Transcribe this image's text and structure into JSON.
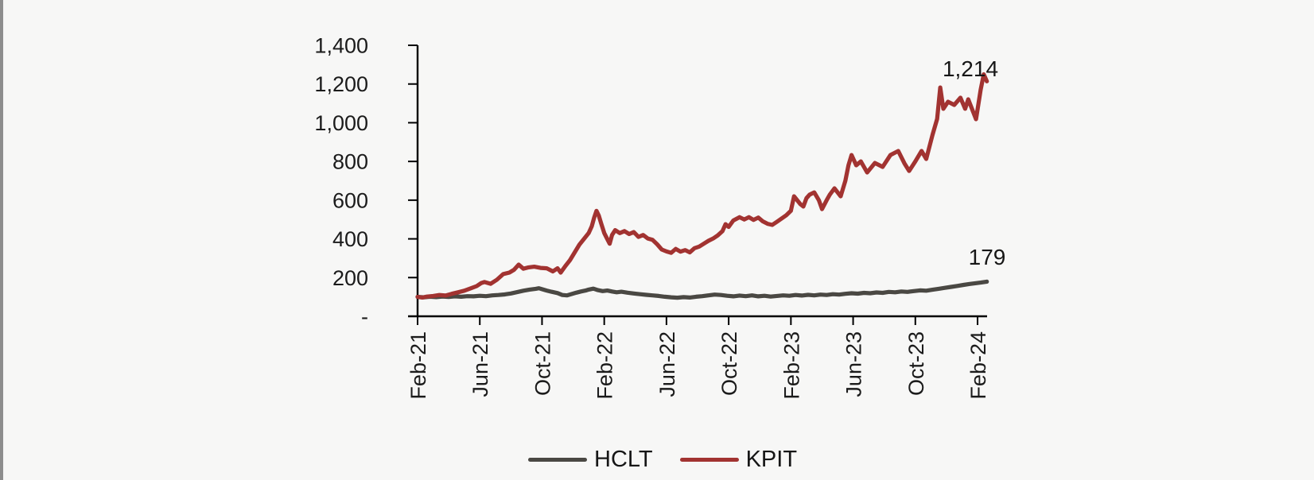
{
  "page": {
    "background": "#f7f7f6",
    "window_edge_color": "#8d8d8d"
  },
  "chart_data": {
    "type": "line",
    "title": "",
    "description": "Indexed share-price performance of HCLT vs KPIT from Feb-2021 to Feb-2024 (base 100)",
    "grid": false,
    "points_format": "[months_since_Feb-2021, indexed_value]",
    "x_axis": {
      "tick_labels": [
        "Feb-21",
        "Jun-21",
        "Oct-21",
        "Feb-22",
        "Jun-22",
        "Oct-22",
        "Feb-23",
        "Jun-23",
        "Oct-23",
        "Feb-24"
      ],
      "tick_interval_months": 4,
      "label_rotation_deg": -90
    },
    "y_axis": {
      "min": 0,
      "max": 1400,
      "tick_step": 200,
      "tick_values": [
        1400,
        1200,
        1000,
        800,
        600,
        400,
        200,
        0
      ],
      "tick_labels": [
        "1,400",
        "1,200",
        "1,000",
        "800",
        "600",
        "400",
        "200",
        "-"
      ]
    },
    "legend": {
      "position": "bottom-center",
      "items": [
        "HCLT",
        "KPIT"
      ]
    },
    "axis_color": "#000000",
    "text_color": "#1b1b1b",
    "series": [
      {
        "name": "HCLT",
        "color": "#4a4843",
        "end_label": "179",
        "end_value": 179,
        "points": [
          [
            0,
            100
          ],
          [
            0.4,
            98
          ],
          [
            0.8,
            101
          ],
          [
            1.2,
            99
          ],
          [
            1.6,
            102
          ],
          [
            2,
            100
          ],
          [
            2.4,
            103
          ],
          [
            2.8,
            101
          ],
          [
            3.2,
            104
          ],
          [
            3.6,
            103
          ],
          [
            4,
            106
          ],
          [
            4.4,
            104
          ],
          [
            4.8,
            108
          ],
          [
            5.2,
            110
          ],
          [
            5.6,
            113
          ],
          [
            6,
            118
          ],
          [
            6.4,
            125
          ],
          [
            6.8,
            132
          ],
          [
            7.2,
            138
          ],
          [
            7.6,
            142
          ],
          [
            7.8,
            145
          ],
          [
            8,
            140
          ],
          [
            8.3,
            133
          ],
          [
            8.6,
            127
          ],
          [
            9,
            120
          ],
          [
            9.3,
            110
          ],
          [
            9.6,
            108
          ],
          [
            9.9,
            115
          ],
          [
            10.2,
            122
          ],
          [
            10.5,
            128
          ],
          [
            10.8,
            133
          ],
          [
            11,
            138
          ],
          [
            11.3,
            143
          ],
          [
            11.6,
            135
          ],
          [
            11.9,
            130
          ],
          [
            12.2,
            133
          ],
          [
            12.5,
            128
          ],
          [
            12.8,
            124
          ],
          [
            13.1,
            127
          ],
          [
            13.5,
            122
          ],
          [
            13.9,
            118
          ],
          [
            14.3,
            114
          ],
          [
            14.7,
            111
          ],
          [
            15.1,
            108
          ],
          [
            15.5,
            105
          ],
          [
            15.9,
            101
          ],
          [
            16.3,
            98
          ],
          [
            16.7,
            96
          ],
          [
            17.1,
            99
          ],
          [
            17.5,
            97
          ],
          [
            17.9,
            101
          ],
          [
            18.3,
            104
          ],
          [
            18.7,
            108
          ],
          [
            19.1,
            112
          ],
          [
            19.5,
            110
          ],
          [
            19.9,
            106
          ],
          [
            20.3,
            103
          ],
          [
            20.7,
            107
          ],
          [
            21.1,
            104
          ],
          [
            21.5,
            108
          ],
          [
            21.9,
            103
          ],
          [
            22.3,
            106
          ],
          [
            22.7,
            102
          ],
          [
            23.1,
            105
          ],
          [
            23.5,
            108
          ],
          [
            23.9,
            106
          ],
          [
            24.3,
            110
          ],
          [
            24.7,
            107
          ],
          [
            25.1,
            111
          ],
          [
            25.5,
            108
          ],
          [
            25.9,
            112
          ],
          [
            26.3,
            110
          ],
          [
            26.7,
            114
          ],
          [
            27.1,
            112
          ],
          [
            27.5,
            116
          ],
          [
            27.9,
            119
          ],
          [
            28.3,
            117
          ],
          [
            28.7,
            121
          ],
          [
            29.1,
            119
          ],
          [
            29.5,
            123
          ],
          [
            29.9,
            121
          ],
          [
            30.3,
            126
          ],
          [
            30.7,
            124
          ],
          [
            31.1,
            128
          ],
          [
            31.5,
            126
          ],
          [
            31.9,
            130
          ],
          [
            32.3,
            134
          ],
          [
            32.7,
            132
          ],
          [
            33.1,
            137
          ],
          [
            33.5,
            142
          ],
          [
            33.9,
            147
          ],
          [
            34.3,
            152
          ],
          [
            34.7,
            157
          ],
          [
            35.1,
            162
          ],
          [
            35.5,
            167
          ],
          [
            35.9,
            171
          ],
          [
            36.2,
            174
          ],
          [
            36.6,
            179
          ]
        ]
      },
      {
        "name": "KPIT",
        "color": "#a23331",
        "end_label": "1,214",
        "end_value": 1214,
        "points": [
          [
            0,
            100
          ],
          [
            0.3,
            97
          ],
          [
            0.6,
            102
          ],
          [
            1,
            105
          ],
          [
            1.4,
            110
          ],
          [
            1.8,
            107
          ],
          [
            2.2,
            116
          ],
          [
            2.6,
            124
          ],
          [
            3,
            132
          ],
          [
            3.4,
            144
          ],
          [
            3.8,
            156
          ],
          [
            4.1,
            172
          ],
          [
            4.3,
            177
          ],
          [
            4.7,
            168
          ],
          [
            5.1,
            189
          ],
          [
            5.5,
            218
          ],
          [
            5.9,
            226
          ],
          [
            6.2,
            240
          ],
          [
            6.5,
            267
          ],
          [
            6.8,
            246
          ],
          [
            7.1,
            252
          ],
          [
            7.5,
            256
          ],
          [
            7.9,
            250
          ],
          [
            8.3,
            248
          ],
          [
            8.7,
            232
          ],
          [
            9,
            248
          ],
          [
            9.2,
            226
          ],
          [
            9.5,
            260
          ],
          [
            9.8,
            290
          ],
          [
            10.1,
            330
          ],
          [
            10.4,
            370
          ],
          [
            10.7,
            400
          ],
          [
            11,
            430
          ],
          [
            11.2,
            465
          ],
          [
            11.35,
            510
          ],
          [
            11.5,
            545
          ],
          [
            11.65,
            520
          ],
          [
            11.8,
            480
          ],
          [
            12,
            430
          ],
          [
            12.2,
            398
          ],
          [
            12.35,
            375
          ],
          [
            12.5,
            420
          ],
          [
            12.7,
            445
          ],
          [
            13,
            430
          ],
          [
            13.3,
            440
          ],
          [
            13.6,
            425
          ],
          [
            13.9,
            435
          ],
          [
            14.2,
            410
          ],
          [
            14.5,
            420
          ],
          [
            14.8,
            402
          ],
          [
            15.1,
            395
          ],
          [
            15.4,
            372
          ],
          [
            15.7,
            345
          ],
          [
            16,
            335
          ],
          [
            16.3,
            328
          ],
          [
            16.6,
            348
          ],
          [
            16.9,
            334
          ],
          [
            17.2,
            342
          ],
          [
            17.5,
            330
          ],
          [
            17.8,
            352
          ],
          [
            18.1,
            360
          ],
          [
            18.4,
            375
          ],
          [
            18.7,
            390
          ],
          [
            19,
            402
          ],
          [
            19.3,
            418
          ],
          [
            19.6,
            440
          ],
          [
            19.8,
            476
          ],
          [
            20,
            462
          ],
          [
            20.3,
            495
          ],
          [
            20.7,
            512
          ],
          [
            21,
            500
          ],
          [
            21.3,
            512
          ],
          [
            21.6,
            498
          ],
          [
            21.9,
            510
          ],
          [
            22.2,
            490
          ],
          [
            22.5,
            478
          ],
          [
            22.8,
            472
          ],
          [
            23.1,
            488
          ],
          [
            23.4,
            505
          ],
          [
            23.7,
            522
          ],
          [
            24,
            545
          ],
          [
            24.2,
            620
          ],
          [
            24.4,
            600
          ],
          [
            24.6,
            580
          ],
          [
            24.8,
            567
          ],
          [
            25,
            610
          ],
          [
            25.2,
            628
          ],
          [
            25.5,
            640
          ],
          [
            25.8,
            600
          ],
          [
            26,
            554
          ],
          [
            26.3,
            600
          ],
          [
            26.5,
            628
          ],
          [
            26.8,
            661
          ],
          [
            27.2,
            620
          ],
          [
            27.5,
            700
          ],
          [
            27.7,
            780
          ],
          [
            27.9,
            833
          ],
          [
            28.2,
            780
          ],
          [
            28.5,
            800
          ],
          [
            28.9,
            743
          ],
          [
            29.4,
            792
          ],
          [
            29.9,
            772
          ],
          [
            30.4,
            833
          ],
          [
            30.9,
            854
          ],
          [
            31.3,
            790
          ],
          [
            31.6,
            751
          ],
          [
            32,
            800
          ],
          [
            32.4,
            854
          ],
          [
            32.7,
            813
          ],
          [
            33.1,
            936
          ],
          [
            33.4,
            1020
          ],
          [
            33.6,
            1182
          ],
          [
            33.8,
            1072
          ],
          [
            34.1,
            1108
          ],
          [
            34.5,
            1092
          ],
          [
            34.9,
            1129
          ],
          [
            35.2,
            1072
          ],
          [
            35.4,
            1121
          ],
          [
            35.9,
            1018
          ],
          [
            36.2,
            1170
          ],
          [
            36.4,
            1250
          ],
          [
            36.6,
            1214
          ]
        ]
      }
    ]
  }
}
